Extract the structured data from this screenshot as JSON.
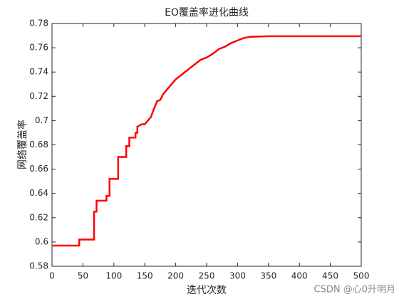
{
  "chart_data": {
    "type": "line",
    "title": "EO覆盖率进化曲线",
    "xlabel": "迭代次数",
    "ylabel": "网络覆盖率",
    "x": [
      1,
      44,
      44,
      68,
      68,
      72,
      72,
      88,
      88,
      93,
      93,
      107,
      107,
      120,
      120,
      125,
      125,
      135,
      135,
      138,
      138,
      145,
      150,
      160,
      165,
      170,
      175,
      180,
      190,
      200,
      210,
      220,
      230,
      240,
      250,
      260,
      270,
      280,
      290,
      300,
      310,
      320,
      350,
      500
    ],
    "series": [
      {
        "color": "#ff0000",
        "values": [
          0.597,
          0.597,
          0.602,
          0.602,
          0.625,
          0.625,
          0.634,
          0.634,
          0.638,
          0.638,
          0.652,
          0.652,
          0.67,
          0.67,
          0.679,
          0.679,
          0.686,
          0.686,
          0.69,
          0.69,
          0.695,
          0.697,
          0.697,
          0.703,
          0.71,
          0.716,
          0.717,
          0.722,
          0.728,
          0.734,
          0.738,
          0.742,
          0.746,
          0.75,
          0.752,
          0.755,
          0.759,
          0.761,
          0.764,
          0.766,
          0.768,
          0.769,
          0.7695,
          0.7695
        ]
      }
    ],
    "xlim": [
      0,
      500
    ],
    "xticks": [
      0,
      50,
      100,
      150,
      200,
      250,
      300,
      350,
      400,
      450,
      500
    ],
    "ylim": [
      0.58,
      0.78
    ],
    "yticks": [
      0.58,
      0.6,
      0.62,
      0.64,
      0.66,
      0.68,
      0.7,
      0.72,
      0.74,
      0.76,
      0.78
    ],
    "watermark": "CSDN @心0升明月"
  }
}
